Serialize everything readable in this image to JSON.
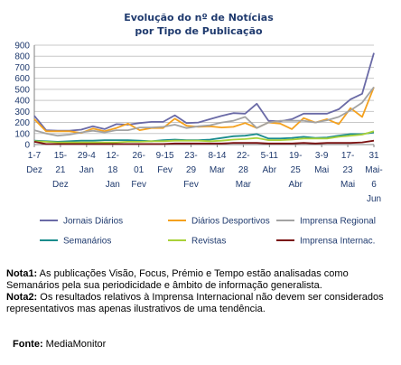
{
  "chart_data": {
    "type": "line",
    "title_lines": [
      "Evolução do nº de Notícias",
      "por Tipo de Publicação"
    ],
    "ylim": [
      0,
      900
    ],
    "yticks": [
      0,
      100,
      200,
      300,
      400,
      500,
      600,
      700,
      800,
      900
    ],
    "grid": "horizontal",
    "legend_position": "bottom",
    "x_labels": [
      [
        "1-7",
        "Dez"
      ],
      [
        "15-",
        "21",
        "Dez"
      ],
      [
        "29-4",
        "Jan"
      ],
      [
        "12-",
        "18",
        "Jan"
      ],
      [
        "26-",
        "01",
        "Fev"
      ],
      [
        "9-15",
        "Fev"
      ],
      [
        "23-",
        "29",
        "Fev"
      ],
      [
        "8-14",
        "Mar"
      ],
      [
        "22-",
        "28",
        "Mar"
      ],
      [
        "5-11",
        "Abr"
      ],
      [
        "19-",
        "25",
        "Abr"
      ],
      [
        "3-9",
        "Mai"
      ],
      [
        "17-",
        "23",
        "Mai"
      ],
      [
        "31",
        "Mai-",
        "6",
        "Jun"
      ]
    ],
    "series": [
      {
        "name": "Jornais Diários",
        "color": "#6a6aa6",
        "values": [
          260,
          130,
          125,
          125,
          135,
          165,
          140,
          185,
          180,
          195,
          205,
          205,
          265,
          195,
          200,
          230,
          260,
          285,
          280,
          370,
          215,
          210,
          230,
          280,
          280,
          280,
          320,
          410,
          460,
          830
        ]
      },
      {
        "name": "Diários Desportivos",
        "color": "#f4a11e",
        "values": [
          230,
          120,
          120,
          120,
          105,
          145,
          120,
          150,
          190,
          130,
          150,
          150,
          235,
          170,
          160,
          165,
          155,
          160,
          195,
          150,
          200,
          190,
          140,
          240,
          200,
          230,
          185,
          330,
          250,
          520
        ]
      },
      {
        "name": "Imprensa Regional",
        "color": "#a3a3a3",
        "values": [
          130,
          100,
          80,
          90,
          110,
          125,
          110,
          130,
          130,
          155,
          155,
          160,
          180,
          150,
          165,
          175,
          200,
          215,
          250,
          150,
          200,
          215,
          215,
          215,
          200,
          220,
          250,
          310,
          380,
          520
        ]
      },
      {
        "name": "Semanários",
        "color": "#1a8c8c",
        "values": [
          35,
          30,
          25,
          30,
          35,
          35,
          40,
          40,
          40,
          35,
          30,
          40,
          45,
          40,
          40,
          45,
          60,
          75,
          80,
          95,
          55,
          55,
          60,
          70,
          60,
          65,
          80,
          95,
          95,
          110
        ]
      },
      {
        "name": "Revistas",
        "color": "#a9d13a",
        "values": [
          30,
          25,
          20,
          20,
          20,
          20,
          20,
          20,
          25,
          25,
          30,
          30,
          35,
          35,
          35,
          30,
          35,
          45,
          50,
          60,
          40,
          40,
          45,
          55,
          55,
          55,
          70,
          80,
          90,
          120
        ]
      },
      {
        "name": "Imprensa Internac.",
        "color": "#7a1010",
        "values": [
          25,
          5,
          5,
          5,
          5,
          5,
          5,
          5,
          5,
          5,
          5,
          5,
          10,
          10,
          10,
          10,
          10,
          15,
          15,
          15,
          10,
          10,
          10,
          15,
          10,
          15,
          15,
          15,
          20,
          35
        ]
      }
    ]
  },
  "notes": {
    "nota1_label": "Nota1:",
    "nota1_text": " As publicações Visão, Focus, Prémio e Tempo estão analisadas como Semanários pela sua periodicidade e âmbito de informação generalista.",
    "nota2_label": "Nota2:",
    "nota2_text": " Os resultados relativos à Imprensa Internacional não devem ser considerados representativos mas apenas ilustrativos de uma tendência."
  },
  "source": {
    "label": "Fonte:",
    "value": " MediaMonitor"
  }
}
